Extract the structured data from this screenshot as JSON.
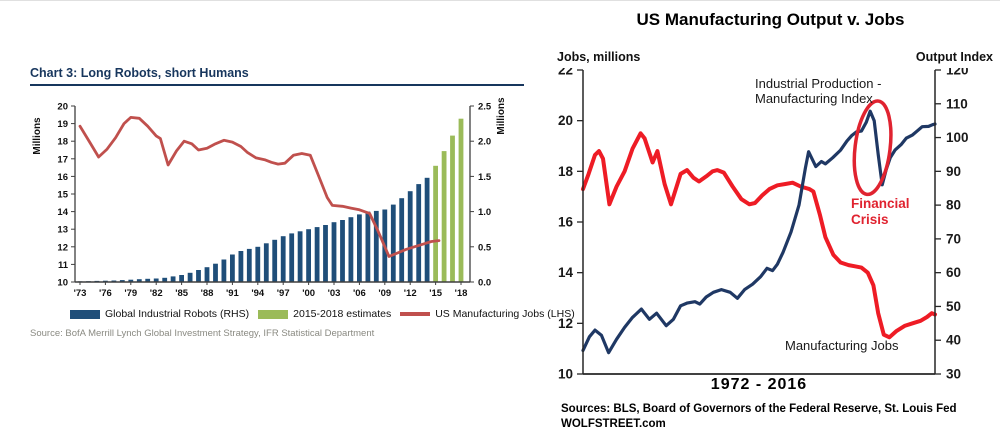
{
  "left_chart": {
    "title": "Chart 3: Long Robots, short Humans",
    "source": "Source: BofA Merrill Lynch Global Investment Strategy, IFR Statistical Department",
    "y_left_axis_label": "Millions",
    "y_right_axis_label": "Millions",
    "legend": [
      {
        "label": "Global Industrial Robots (RHS)",
        "color": "#1F4E79",
        "marker": "rect"
      },
      {
        "label": "2015-2018 estimates",
        "color": "#9BBB59",
        "marker": "rect"
      },
      {
        "label": "US Manufacturing Jobs (LHS)",
        "color": "#C0504D",
        "marker": "line"
      }
    ]
  },
  "right_chart": {
    "title": "US Manufacturing Output v. Jobs",
    "y_left_axis_label": "Jobs, millions",
    "y_right_axis_label": "Output Index",
    "x_caption": "1972  -  2016",
    "sources_line": "Sources: BLS, Board of Governors of the Federal Reserve, St. Louis Fed",
    "brand_line": "WOLFSTREET.com",
    "annotations": {
      "output_series_line1": "Industrial Production -",
      "output_series_line2": "Manufacturing Index",
      "crisis_line1": "Financial",
      "crisis_line2": "Crisis",
      "jobs_series": "Manufacturing Jobs"
    }
  },
  "chart_data": [
    {
      "type": "bar",
      "title": "Chart 3: Long Robots, short Humans",
      "y_left": {
        "label": "Millions",
        "min": 10,
        "max": 20,
        "step": 1,
        "ticks": [
          10,
          11,
          12,
          13,
          14,
          15,
          16,
          17,
          18,
          19,
          20
        ]
      },
      "y_right": {
        "label": "Millions",
        "min": 0,
        "max": 2.5,
        "step": 0.5,
        "ticks": [
          0.0,
          0.5,
          1.0,
          1.5,
          2.0,
          2.5
        ]
      },
      "x_ticks": [
        [
          "'73",
          1973
        ],
        [
          "'76",
          1976
        ],
        [
          "'79",
          1979
        ],
        [
          "'82",
          1982
        ],
        [
          "'85",
          1985
        ],
        [
          "'88",
          1988
        ],
        [
          "'91",
          1991
        ],
        [
          "'94",
          1994
        ],
        [
          "'97",
          1997
        ],
        [
          "'00",
          2000
        ],
        [
          "'03",
          2003
        ],
        [
          "'06",
          2006
        ],
        [
          "'09",
          2009
        ],
        [
          "'12",
          2012
        ],
        [
          "'15",
          2015
        ],
        [
          "'18",
          2018
        ]
      ],
      "series": [
        {
          "name": "Global Industrial Robots (RHS)",
          "type": "bar",
          "axis": "right",
          "color": "#1F4E79",
          "points": [
            [
              1973,
              0.01
            ],
            [
              1974,
              0.012
            ],
            [
              1975,
              0.015
            ],
            [
              1976,
              0.018
            ],
            [
              1977,
              0.022
            ],
            [
              1978,
              0.027
            ],
            [
              1979,
              0.032
            ],
            [
              1980,
              0.04
            ],
            [
              1981,
              0.045
            ],
            [
              1982,
              0.05
            ],
            [
              1983,
              0.06
            ],
            [
              1984,
              0.08
            ],
            [
              1985,
              0.1
            ],
            [
              1986,
              0.13
            ],
            [
              1987,
              0.17
            ],
            [
              1988,
              0.21
            ],
            [
              1989,
              0.26
            ],
            [
              1990,
              0.32
            ],
            [
              1991,
              0.39
            ],
            [
              1992,
              0.44
            ],
            [
              1993,
              0.47
            ],
            [
              1994,
              0.5
            ],
            [
              1995,
              0.55
            ],
            [
              1996,
              0.6
            ],
            [
              1997,
              0.65
            ],
            [
              1998,
              0.69
            ],
            [
              1999,
              0.72
            ],
            [
              2000,
              0.75
            ],
            [
              2001,
              0.78
            ],
            [
              2002,
              0.81
            ],
            [
              2003,
              0.85
            ],
            [
              2004,
              0.88
            ],
            [
              2005,
              0.92
            ],
            [
              2006,
              0.96
            ],
            [
              2007,
              1.0
            ],
            [
              2008,
              1.01
            ],
            [
              2009,
              1.03
            ],
            [
              2010,
              1.1
            ],
            [
              2011,
              1.19
            ],
            [
              2012,
              1.29
            ],
            [
              2013,
              1.39
            ],
            [
              2014,
              1.48
            ]
          ]
        },
        {
          "name": "2015-2018 estimates",
          "type": "bar",
          "axis": "right",
          "color": "#9BBB59",
          "points": [
            [
              2015,
              1.65
            ],
            [
              2016,
              1.86
            ],
            [
              2017,
              2.08
            ],
            [
              2018,
              2.32
            ]
          ]
        },
        {
          "name": "US Manufacturing Jobs (LHS)",
          "type": "line",
          "axis": "left",
          "color": "#C0504D",
          "points": [
            [
              1973,
              18.85
            ],
            [
              1974.2,
              17.9
            ],
            [
              1975.2,
              17.1
            ],
            [
              1976.2,
              17.55
            ],
            [
              1977.2,
              18.2
            ],
            [
              1978.2,
              19.0
            ],
            [
              1979,
              19.35
            ],
            [
              1980,
              19.3
            ],
            [
              1981,
              18.85
            ],
            [
              1982,
              18.3
            ],
            [
              1982.5,
              18.15
            ],
            [
              1983.4,
              16.65
            ],
            [
              1984.4,
              17.45
            ],
            [
              1985.3,
              18.0
            ],
            [
              1986.2,
              17.85
            ],
            [
              1987,
              17.5
            ],
            [
              1988,
              17.6
            ],
            [
              1989,
              17.85
            ],
            [
              1990,
              18.05
            ],
            [
              1991,
              17.95
            ],
            [
              1992,
              17.7
            ],
            [
              1992.8,
              17.35
            ],
            [
              1993.8,
              17.05
            ],
            [
              1994.8,
              16.95
            ],
            [
              1995.6,
              16.8
            ],
            [
              1996.4,
              16.7
            ],
            [
              1997.2,
              16.75
            ],
            [
              1998.2,
              17.2
            ],
            [
              1999.2,
              17.3
            ],
            [
              2000.2,
              17.2
            ],
            [
              2001.2,
              16.0
            ],
            [
              2002.2,
              14.8
            ],
            [
              2002.8,
              14.35
            ],
            [
              2004,
              14.3
            ],
            [
              2005,
              14.2
            ],
            [
              2006,
              14.1
            ],
            [
              2007.2,
              13.9
            ],
            [
              2008.2,
              12.9
            ],
            [
              2009.5,
              11.45
            ],
            [
              2010.5,
              11.65
            ],
            [
              2011.5,
              11.85
            ],
            [
              2012.5,
              12.0
            ],
            [
              2013.5,
              12.15
            ],
            [
              2014.5,
              12.3
            ],
            [
              2015.4,
              12.35
            ]
          ]
        }
      ]
    },
    {
      "type": "line",
      "title": "US Manufacturing Output v. Jobs",
      "x_range": [
        1972,
        2016
      ],
      "y_left": {
        "label": "Jobs, millions",
        "min": 10,
        "max": 22,
        "step": 2,
        "ticks": [
          10,
          12,
          14,
          16,
          18,
          20,
          22
        ]
      },
      "y_right": {
        "label": "Output Index",
        "min": 30,
        "max": 120,
        "step": 10,
        "ticks": [
          30,
          40,
          50,
          60,
          70,
          80,
          90,
          100,
          110,
          120
        ]
      },
      "series": [
        {
          "name": "Manufacturing Jobs",
          "axis": "left",
          "color": "#EE1C25",
          "stroke_width": 4,
          "points": [
            [
              1972,
              17.3
            ],
            [
              1972.7,
              17.9
            ],
            [
              1973.5,
              18.65
            ],
            [
              1974,
              18.8
            ],
            [
              1974.5,
              18.5
            ],
            [
              1975.3,
              16.7
            ],
            [
              1976.2,
              17.4
            ],
            [
              1977.2,
              18.0
            ],
            [
              1978.2,
              18.9
            ],
            [
              1979.2,
              19.5
            ],
            [
              1979.7,
              19.3
            ],
            [
              1980.7,
              18.35
            ],
            [
              1981.3,
              18.8
            ],
            [
              1982.2,
              17.5
            ],
            [
              1983,
              16.7
            ],
            [
              1984.2,
              17.9
            ],
            [
              1985,
              18.05
            ],
            [
              1985.8,
              17.75
            ],
            [
              1986.5,
              17.6
            ],
            [
              1987.4,
              17.8
            ],
            [
              1988.2,
              18.0
            ],
            [
              1988.8,
              18.05
            ],
            [
              1989.6,
              17.95
            ],
            [
              1990.7,
              17.4
            ],
            [
              1991.8,
              16.9
            ],
            [
              1992.8,
              16.7
            ],
            [
              1993.5,
              16.75
            ],
            [
              1994.4,
              17.05
            ],
            [
              1995.3,
              17.3
            ],
            [
              1996.3,
              17.45
            ],
            [
              1997.3,
              17.5
            ],
            [
              1998.2,
              17.55
            ],
            [
              1999.2,
              17.4
            ],
            [
              2000.3,
              17.3
            ],
            [
              2000.8,
              17.2
            ],
            [
              2001.6,
              16.3
            ],
            [
              2002.3,
              15.4
            ],
            [
              2003.3,
              14.7
            ],
            [
              2004.2,
              14.4
            ],
            [
              2005.2,
              14.3
            ],
            [
              2006,
              14.25
            ],
            [
              2006.8,
              14.2
            ],
            [
              2007.6,
              14.0
            ],
            [
              2008.3,
              13.5
            ],
            [
              2008.9,
              12.4
            ],
            [
              2009.6,
              11.55
            ],
            [
              2010.3,
              11.45
            ],
            [
              2011.2,
              11.7
            ],
            [
              2012.2,
              11.9
            ],
            [
              2013.2,
              12.0
            ],
            [
              2014.2,
              12.1
            ],
            [
              2015,
              12.25
            ],
            [
              2015.6,
              12.4
            ],
            [
              2016,
              12.35
            ]
          ]
        },
        {
          "name": "Industrial Production - Manufacturing Index",
          "axis": "right",
          "color": "#1F3864",
          "stroke_width": 3.2,
          "points": [
            [
              1972,
              37
            ],
            [
              1972.8,
              41
            ],
            [
              1973.5,
              43
            ],
            [
              1974.3,
              41.5
            ],
            [
              1975.2,
              36.3
            ],
            [
              1976.2,
              40.3
            ],
            [
              1977.2,
              43.8
            ],
            [
              1978.2,
              46.8
            ],
            [
              1979.3,
              49.2
            ],
            [
              1980.3,
              46.2
            ],
            [
              1981.2,
              48
            ],
            [
              1982.4,
              44.3
            ],
            [
              1983.3,
              46.2
            ],
            [
              1984.2,
              50.2
            ],
            [
              1985,
              51
            ],
            [
              1986,
              51.4
            ],
            [
              1986.6,
              50.7
            ],
            [
              1987.4,
              52.8
            ],
            [
              1988.3,
              54.2
            ],
            [
              1989.3,
              55
            ],
            [
              1990.4,
              54.2
            ],
            [
              1991.3,
              52.4
            ],
            [
              1992.2,
              55
            ],
            [
              1993.2,
              56.6
            ],
            [
              1994.2,
              58.8
            ],
            [
              1995,
              61.3
            ],
            [
              1995.7,
              60.6
            ],
            [
              1996.3,
              62.5
            ],
            [
              1997,
              66
            ],
            [
              1998,
              72
            ],
            [
              1999,
              80
            ],
            [
              1999.8,
              91
            ],
            [
              2000.2,
              95.8
            ],
            [
              2001.1,
              91.4
            ],
            [
              2001.8,
              92.9
            ],
            [
              2002.3,
              92.2
            ],
            [
              2003.2,
              94
            ],
            [
              2004.2,
              96.3
            ],
            [
              2005,
              99
            ],
            [
              2005.6,
              100.6
            ],
            [
              2006.2,
              101.7
            ],
            [
              2006.8,
              101.9
            ],
            [
              2007.4,
              104.5
            ],
            [
              2007.9,
              107.8
            ],
            [
              2008.4,
              105
            ],
            [
              2008.9,
              95
            ],
            [
              2009.4,
              86
            ],
            [
              2009.9,
              90.5
            ],
            [
              2010.4,
              94
            ],
            [
              2011,
              96.3
            ],
            [
              2011.8,
              98
            ],
            [
              2012.4,
              99.8
            ],
            [
              2013.2,
              100.8
            ],
            [
              2013.8,
              102
            ],
            [
              2014.4,
              103.2
            ],
            [
              2015.2,
              103.3
            ],
            [
              2015.7,
              103.8
            ],
            [
              2016,
              104
            ]
          ]
        }
      ],
      "annotation_ellipse": {
        "label": "Financial Crisis",
        "color": "#E02330",
        "center_year": 2008.2,
        "center_index": 97
      }
    }
  ]
}
